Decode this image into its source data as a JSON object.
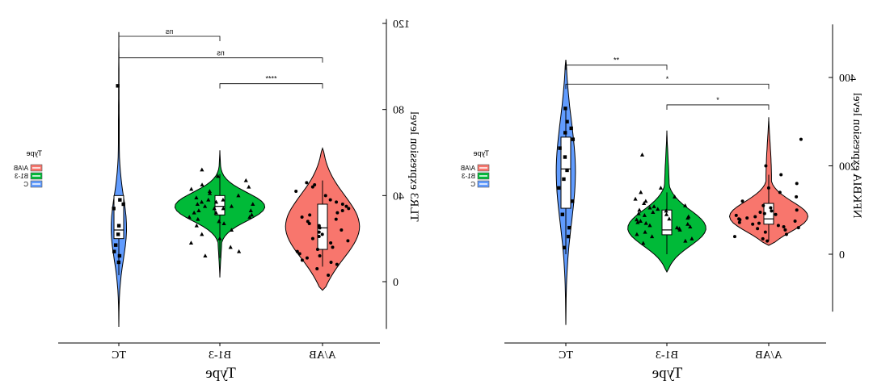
{
  "chart_data": [
    {
      "type": "violin",
      "xlabel": "Type",
      "ylabel": "TLR3 expression level",
      "categories": [
        "TC",
        "B1-3",
        "A/AB"
      ],
      "yticks": [
        0,
        40,
        80,
        120
      ],
      "ylim": [
        -22,
        122
      ],
      "orientation": "mirrored-horizontal",
      "legend": {
        "title": "Type",
        "entries": [
          "A/AB",
          "B1-3",
          "C"
        ],
        "placement": "left"
      },
      "series": [
        {
          "category": "TC",
          "color": "#619CFF",
          "median": 24,
          "q1": 20,
          "q3": 40,
          "whisker_low": 3,
          "whisker_high": 40,
          "min": -21,
          "max": 116,
          "marker": "square",
          "points": [
            9,
            12,
            14,
            17,
            22,
            26,
            34,
            36,
            38,
            91
          ]
        },
        {
          "category": "B1-3",
          "color": "#00BA38",
          "median": 35,
          "q1": 31,
          "q3": 40,
          "whisker_low": 11,
          "whisker_high": 50,
          "min": 2,
          "max": 61,
          "marker": "triangle",
          "points": [
            12,
            14,
            16,
            18,
            20,
            22,
            24,
            26,
            27,
            28,
            29,
            30,
            30,
            31,
            32,
            32,
            33,
            33,
            34,
            34,
            35,
            35,
            36,
            36,
            37,
            37,
            38,
            38,
            39,
            40,
            41,
            42,
            43,
            44,
            45,
            47,
            49,
            52
          ]
        },
        {
          "category": "A/AB",
          "color": "#F8766D",
          "median": 25,
          "q1": 15,
          "q3": 36,
          "whisker_low": 7,
          "whisker_high": 47,
          "min": -4,
          "max": 62,
          "marker": "circle",
          "points": [
            3,
            6,
            8,
            9,
            10,
            11,
            12,
            13,
            14,
            15,
            16,
            18,
            19,
            20,
            21,
            22,
            23,
            24,
            25,
            26,
            27,
            28,
            29,
            30,
            31,
            32,
            33,
            34,
            35,
            36,
            37,
            38,
            40,
            42,
            44,
            45,
            46
          ]
        }
      ],
      "comparisons": [
        {
          "from": "TC",
          "to": "B1-3",
          "label": "ns",
          "y": 114
        },
        {
          "from": "TC",
          "to": "A/AB",
          "label": "ns",
          "y": 104
        },
        {
          "from": "B1-3",
          "to": "A/AB",
          "label": "****",
          "y": 92
        }
      ]
    },
    {
      "type": "violin",
      "xlabel": "Type",
      "ylabel": "NFKBIA expression level",
      "categories": [
        "TC",
        "B1-3",
        "A/AB"
      ],
      "yticks": [
        0,
        200,
        400
      ],
      "ylim": [
        -130,
        520
      ],
      "orientation": "mirrored-horizontal",
      "legend": {
        "title": "Type",
        "entries": [
          "A/AB",
          "B1-3",
          "C"
        ],
        "placement": "left"
      },
      "series": [
        {
          "category": "TC",
          "color": "#619CFF",
          "median": 193,
          "q1": 104,
          "q3": 265,
          "whisker_low": 0,
          "whisker_high": 330,
          "min": -160,
          "max": 440,
          "marker": "square",
          "points": [
            15,
            40,
            60,
            90,
            120,
            150,
            170,
            190,
            220,
            240,
            260,
            275,
            285,
            300,
            330
          ]
        },
        {
          "category": "B1-3",
          "color": "#00BA38",
          "median": 55,
          "q1": 44,
          "q3": 100,
          "whisker_low": 0,
          "whisker_high": 140,
          "min": -40,
          "max": 280,
          "marker": "triangle",
          "points": [
            25,
            30,
            35,
            40,
            45,
            50,
            55,
            58,
            60,
            62,
            65,
            68,
            70,
            72,
            75,
            78,
            80,
            82,
            85,
            88,
            90,
            92,
            95,
            98,
            100,
            102,
            105,
            108,
            110,
            115,
            120,
            125,
            130,
            140,
            150,
            225
          ]
        },
        {
          "category": "A/AB",
          "color": "#F8766D",
          "median": 80,
          "q1": 68,
          "q3": 115,
          "whisker_low": 30,
          "whisker_high": 180,
          "min": 20,
          "max": 310,
          "marker": "circle",
          "points": [
            30,
            35,
            40,
            45,
            50,
            55,
            58,
            60,
            62,
            65,
            68,
            70,
            72,
            75,
            78,
            80,
            82,
            85,
            88,
            90,
            92,
            95,
            98,
            100,
            105,
            110,
            120,
            130,
            140,
            150,
            160,
            180,
            200,
            260
          ]
        }
      ],
      "comparisons": [
        {
          "from": "TC",
          "to": "B1-3",
          "label": "**",
          "y": 428
        },
        {
          "from": "TC",
          "to": "A/AB",
          "label": "*",
          "y": 385
        },
        {
          "from": "B1-3",
          "to": "A/AB",
          "label": "*",
          "y": 338
        }
      ]
    }
  ]
}
